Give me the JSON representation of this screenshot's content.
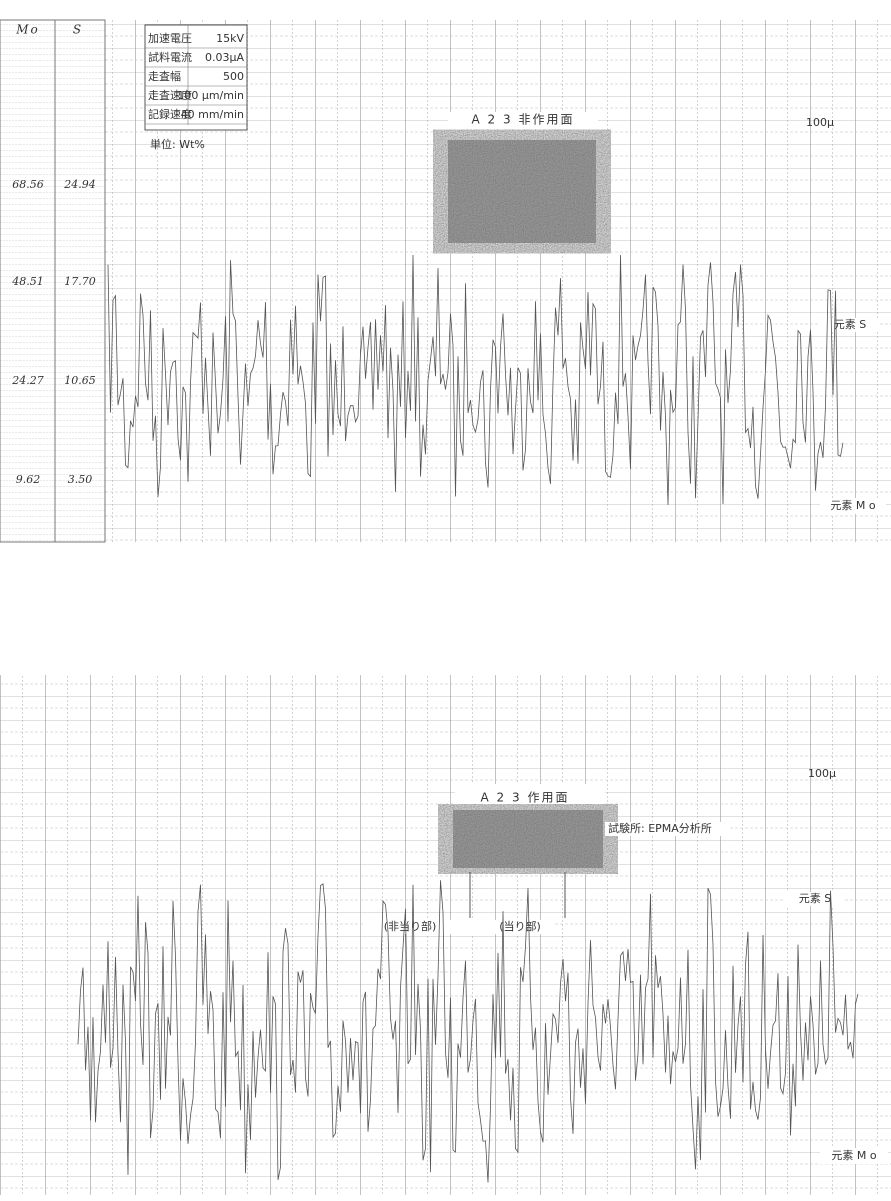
{
  "top_chart": {
    "columns": [
      "Mo",
      "S"
    ],
    "conditions": {
      "rows": [
        [
          "加速電圧",
          "15kV"
        ],
        [
          "試料電流",
          "0.03μA"
        ],
        [
          "走査幅",
          "500"
        ],
        [
          "走査速度",
          "100 μm/min"
        ],
        [
          "記録速度",
          "40 mm/min"
        ]
      ],
      "unit": "単位: Wt%"
    },
    "scale": [
      [
        "68.56",
        "24.94"
      ],
      [
        "48.51",
        "17.70"
      ],
      [
        "24.27",
        "10.65"
      ],
      [
        "9.62",
        "3.50"
      ]
    ],
    "title": "A 2 3 非作用面",
    "scale_bar": "100μ",
    "label_s": "元素 S",
    "label_mo": "元素 M o"
  },
  "bottom_chart": {
    "title": "A 2 3 作用面",
    "scale_bar": "100μ",
    "lab": "試験所: EPMA分析所",
    "label_s": "元素 S",
    "label_non_contact": "(非当り部)",
    "label_contact": "(当り部)",
    "label_mo": "元素 M o"
  }
}
